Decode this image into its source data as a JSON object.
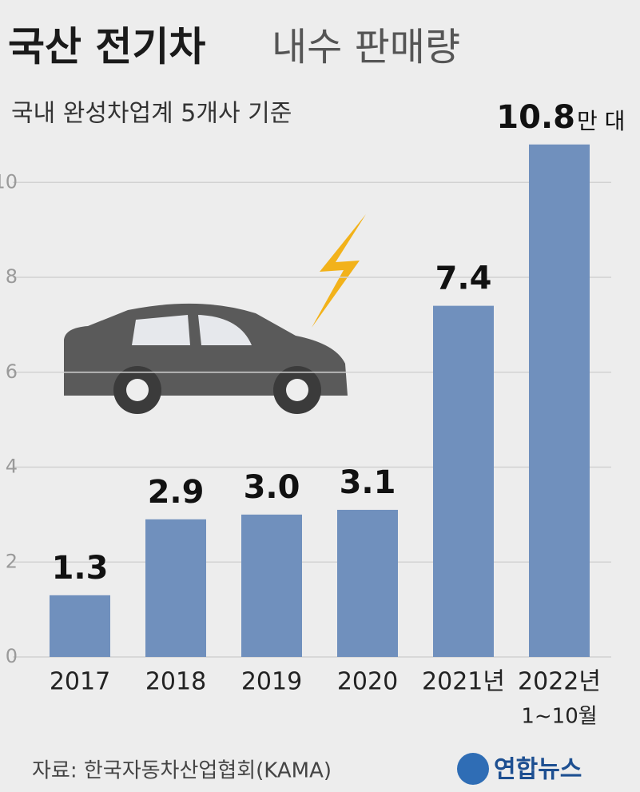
{
  "chart_data": {
    "type": "bar",
    "title_main": "국산 전기차",
    "title_rest": "내수 판매량",
    "subtitle": "국내 완성차업계 5개사 기준",
    "categories": [
      "2017",
      "2018",
      "2019",
      "2020",
      "2021년",
      "2022년"
    ],
    "category_note": "1~10월",
    "values": [
      1.3,
      2.9,
      3,
      3.1,
      7.4,
      10.8
    ],
    "value_labels": [
      "1.3",
      "2.9",
      "3.0",
      "3.1",
      "7.4",
      "10.8"
    ],
    "unit": "만 대",
    "color": "#7090bd",
    "ylim": [
      0,
      11.2
    ],
    "yticks": [
      0,
      2,
      4,
      6,
      8,
      10
    ],
    "grid": true,
    "source": "자료: 한국자동차산업협회(KAMA)",
    "logo": "연합뉴스"
  }
}
